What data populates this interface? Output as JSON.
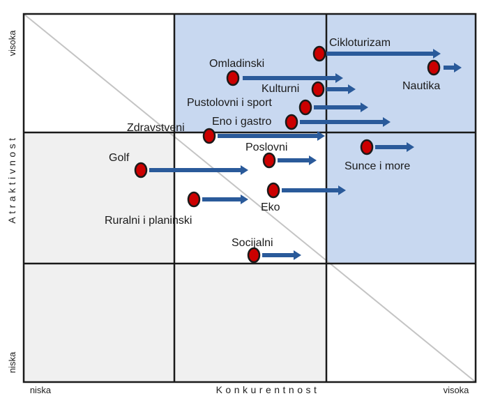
{
  "diagram": {
    "y_axis_title": "Atraktivnost",
    "x_axis_title": "Konkurentnost",
    "y_high": "visoka",
    "y_low": "niska",
    "x_low": "niska",
    "x_high": "visoka",
    "colors": {
      "highlight_fill": "#c8d8f0",
      "gray_fill": "#f0f0f0",
      "grid_line": "#1a1a1a",
      "point_fill": "#cc0000",
      "arrow_color": "#2a5a9a"
    },
    "items": [
      {
        "label": "Cikloturizam"
      },
      {
        "label": "Omladinski"
      },
      {
        "label": "Nautika"
      },
      {
        "label": "Kulturni"
      },
      {
        "label": "Pustolovni i sport"
      },
      {
        "label": "Eno i gastro"
      },
      {
        "label": "Zdravstveni"
      },
      {
        "label": "Poslovni"
      },
      {
        "label": "Sunce i more"
      },
      {
        "label": "Golf"
      },
      {
        "label": "Eko"
      },
      {
        "label": "Ruralni i planinski"
      },
      {
        "label": "Socijalni"
      }
    ]
  }
}
